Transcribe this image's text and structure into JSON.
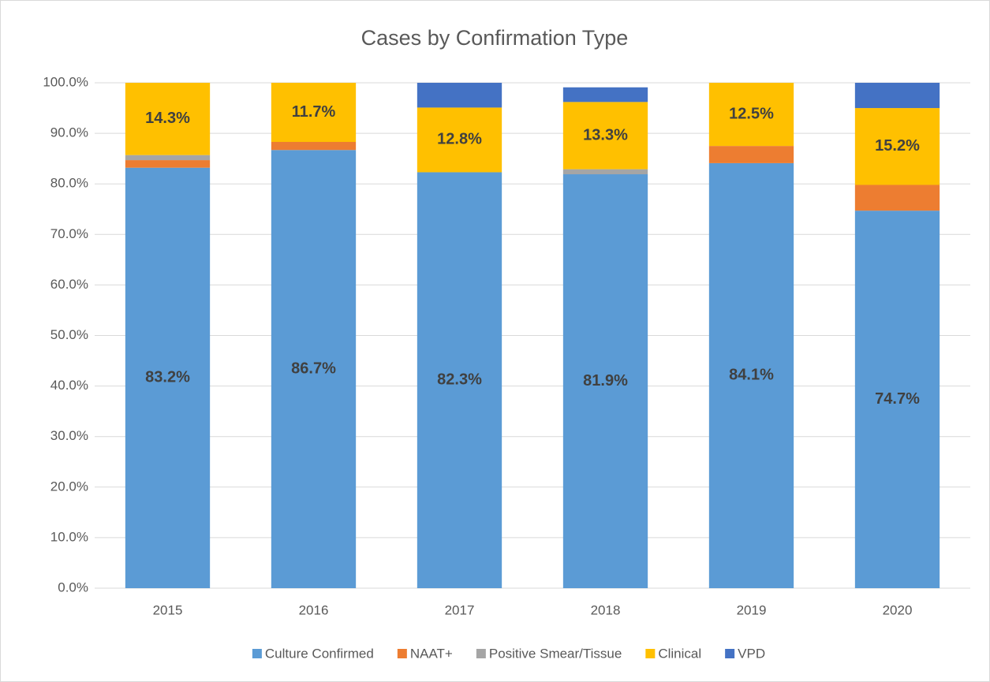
{
  "chart_data": {
    "type": "stacked_bar",
    "title": "Cases  by Confirmation Type",
    "categories": [
      "2015",
      "2016",
      "2017",
      "2018",
      "2019",
      "2020"
    ],
    "series": [
      {
        "name": "Culture Confirmed",
        "color": "#5b9bd5",
        "values": [
          83.2,
          86.7,
          82.3,
          81.9,
          84.1,
          74.7
        ],
        "value_labels": [
          "83.2%",
          "86.7%",
          "82.3%",
          "81.9%",
          "84.1%",
          "74.7%"
        ]
      },
      {
        "name": "NAAT+",
        "color": "#ed7d31",
        "values": [
          1.5,
          1.6,
          0,
          0,
          3.4,
          5.1
        ]
      },
      {
        "name": "Positive Smear/Tissue",
        "color": "#a5a5a5",
        "values": [
          1.0,
          0,
          0,
          1.0,
          0,
          0
        ]
      },
      {
        "name": "Clinical",
        "color": "#ffc000",
        "values": [
          14.3,
          11.7,
          12.8,
          13.3,
          12.5,
          15.2
        ],
        "value_labels": [
          "14.3%",
          "11.7%",
          "12.8%",
          "13.3%",
          "12.5%",
          "15.2%"
        ]
      },
      {
        "name": "VPD",
        "color": "#4472c4",
        "values": [
          0,
          0,
          4.9,
          2.9,
          0,
          5.0
        ]
      }
    ],
    "ylim": [
      0,
      100
    ],
    "yticks": [
      {
        "value": 0,
        "label": "0.0%"
      },
      {
        "value": 10,
        "label": "10.0%"
      },
      {
        "value": 20,
        "label": "20.0%"
      },
      {
        "value": 30,
        "label": "30.0%"
      },
      {
        "value": 40,
        "label": "40.0%"
      },
      {
        "value": 50,
        "label": "50.0%"
      },
      {
        "value": 60,
        "label": "60.0%"
      },
      {
        "value": 70,
        "label": "70.0%"
      },
      {
        "value": 80,
        "label": "80.0%"
      },
      {
        "value": 90,
        "label": "90.0%"
      },
      {
        "value": 100,
        "label": "100.0%"
      }
    ],
    "grid": true,
    "legend": "bottom"
  }
}
